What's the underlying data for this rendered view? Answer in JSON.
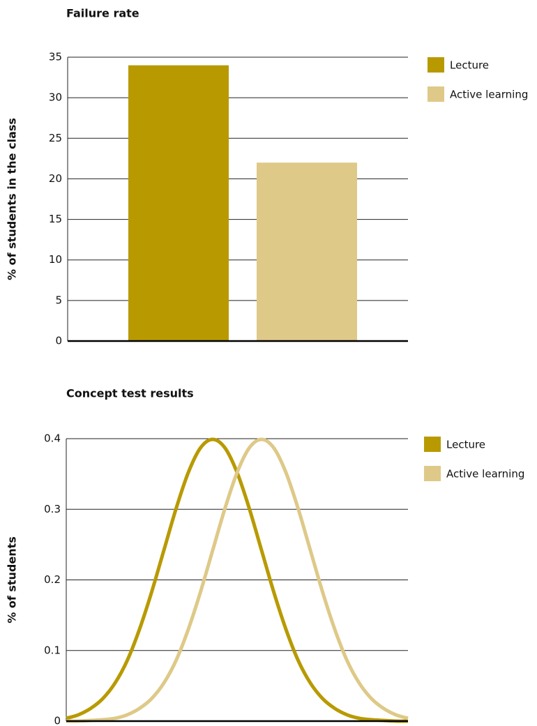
{
  "chart_data": [
    {
      "type": "bar",
      "title": "Failure rate",
      "y_label": "% of students in the class",
      "categories": [
        null
      ],
      "series": [
        {
          "name": "Lecture",
          "color": "#b89a00",
          "values": [
            34
          ]
        },
        {
          "name": "Active learning",
          "color": "#dec988",
          "values": [
            22
          ]
        }
      ],
      "ylim": [
        0,
        35
      ],
      "yticks": [
        0,
        5,
        10,
        15,
        20,
        25,
        30,
        35
      ],
      "grid": true,
      "legend": "right"
    },
    {
      "type": "line",
      "title": "Concept test results",
      "y_label": "% of students",
      "x": [
        -3,
        -2.75,
        -2.5,
        -2.25,
        -2,
        -1.75,
        -1.5,
        -1.25,
        -1,
        -0.75,
        -0.5,
        -0.25,
        0,
        0.25,
        0.5,
        0.75,
        1,
        1.25,
        1.5,
        1.75,
        2,
        2.25,
        2.5,
        2.75,
        3,
        3.25,
        3.5,
        3.75,
        4
      ],
      "series": [
        {
          "name": "Lecture",
          "color": "#b89a00",
          "values": [
            0.004,
            0.009,
            0.018,
            0.032,
            0.054,
            0.086,
            0.13,
            0.183,
            0.242,
            0.301,
            0.352,
            0.387,
            0.399,
            0.387,
            0.352,
            0.301,
            0.242,
            0.183,
            0.13,
            0.086,
            0.054,
            0.032,
            0.018,
            0.009,
            0.004,
            0.002,
            0.001,
            0,
            0
          ]
        },
        {
          "name": "Active learning",
          "color": "#dec988",
          "values": [
            0,
            0,
            0.001,
            0.002,
            0.004,
            0.009,
            0.018,
            0.032,
            0.054,
            0.086,
            0.13,
            0.183,
            0.242,
            0.301,
            0.352,
            0.387,
            0.399,
            0.387,
            0.352,
            0.301,
            0.242,
            0.183,
            0.13,
            0.086,
            0.054,
            0.032,
            0.018,
            0.009,
            0.004
          ]
        }
      ],
      "xlim": [
        -3,
        4
      ],
      "ylim": [
        0,
        0.4
      ],
      "yticks": [
        0,
        0.1,
        0.2,
        0.3,
        0.4
      ],
      "grid": true,
      "legend": "right"
    }
  ]
}
